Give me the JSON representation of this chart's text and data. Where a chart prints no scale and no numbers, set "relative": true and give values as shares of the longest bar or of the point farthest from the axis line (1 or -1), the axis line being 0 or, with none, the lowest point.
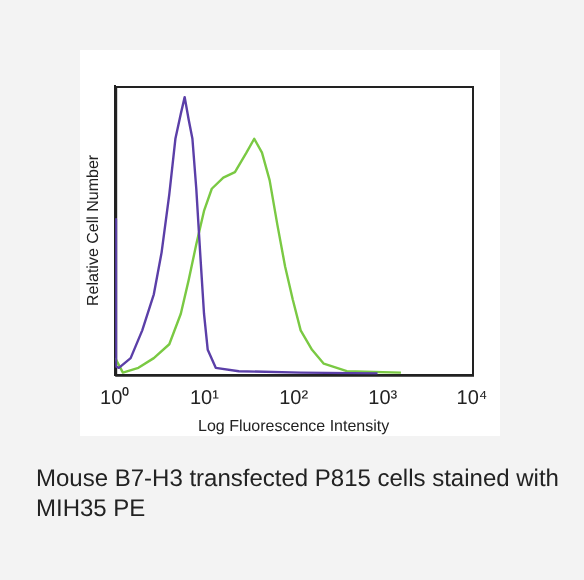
{
  "chart_data": {
    "type": "line",
    "relative": true,
    "log": "x",
    "xlabel": "Log Fluorescence Intensity",
    "ylabel": "Relative Cell Number",
    "xlim": [
      1,
      10000
    ],
    "xticks": [
      {
        "value": 1,
        "label": "10⁰"
      },
      {
        "value": 10,
        "label": "10¹"
      },
      {
        "value": 100,
        "label": "10²"
      },
      {
        "value": 1000,
        "label": "10³"
      },
      {
        "value": 10000,
        "label": "10⁴"
      }
    ],
    "grid": false,
    "legend": false,
    "marker": "none",
    "line_style": "solid",
    "series": [
      {
        "color": "#5b3fa8",
        "x": [
          1,
          1.02,
          1.1,
          1.49,
          2.01,
          2.71,
          3.31,
          4.04,
          4.73,
          5.44,
          6.01,
          6.65,
          7.34,
          8.11,
          8.96,
          9.9,
          10.9,
          13.4,
          24.3,
          120,
          873
        ],
        "values": [
          0.56,
          0.03,
          0.025,
          0.06,
          0.16,
          0.29,
          0.44,
          0.65,
          0.85,
          0.94,
          1,
          0.92,
          0.85,
          0.67,
          0.44,
          0.22,
          0.09,
          0.025,
          0.013,
          0.008,
          0.005
        ]
      },
      {
        "color": "#7ac943",
        "x": [
          1,
          1.22,
          1.82,
          2.71,
          4.04,
          5.44,
          6.65,
          8.11,
          9.9,
          12.1,
          16.3,
          22,
          29.6,
          36.2,
          44.2,
          53.9,
          65.8,
          80.3,
          98,
          120,
          161,
          218,
          395,
          1597
        ],
        "values": [
          0.06,
          0.008,
          0.025,
          0.06,
          0.11,
          0.22,
          0.34,
          0.47,
          0.59,
          0.67,
          0.71,
          0.73,
          0.8,
          0.85,
          0.8,
          0.7,
          0.54,
          0.39,
          0.27,
          0.16,
          0.09,
          0.04,
          0.013,
          0.008
        ]
      }
    ],
    "annotations": [
      "Mouse B7-H3 transfected P815 cells stained with MIH35 PE"
    ]
  }
}
